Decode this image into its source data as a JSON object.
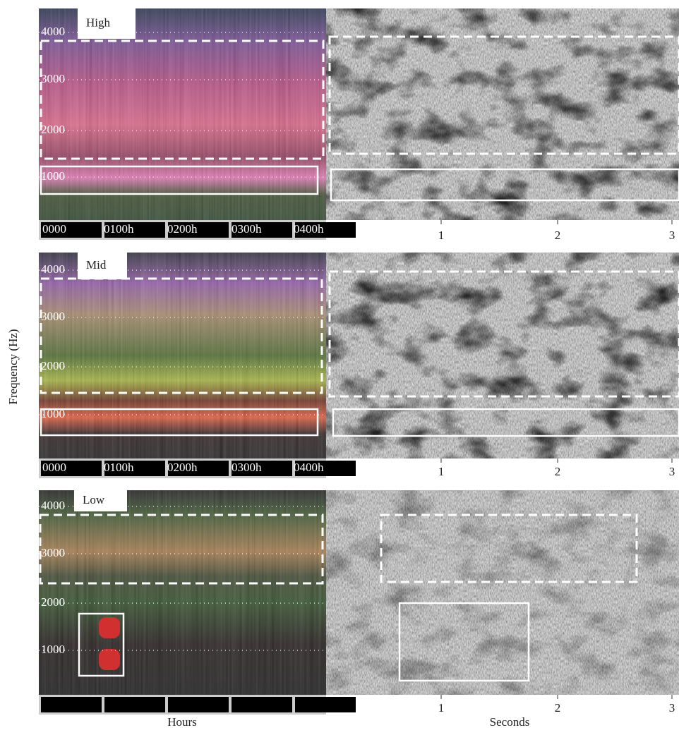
{
  "y_axis_label": "Frequency (Hz)",
  "x_axis_labels": {
    "left": "Hours",
    "right": "Seconds"
  },
  "rows": [
    {
      "label": "High",
      "frequency_ticks": [
        "4000",
        "3000",
        "2000",
        "1000"
      ],
      "hour_ticks": [
        "0000",
        "0100h",
        "0200h",
        "0300h",
        "0400h"
      ],
      "second_ticks": [
        "1",
        "2",
        "3"
      ]
    },
    {
      "label": "Mid",
      "frequency_ticks": [
        "4000",
        "3000",
        "2000",
        "1000"
      ],
      "hour_ticks": [
        "0000",
        "0100h",
        "0200h",
        "0300h",
        "0400h"
      ],
      "second_ticks": [
        "1",
        "2",
        "3"
      ]
    },
    {
      "label": "Low",
      "frequency_ticks": [
        "4000",
        "3000",
        "2000",
        "1000"
      ],
      "second_ticks": [
        "1",
        "2",
        "3"
      ]
    }
  ]
}
